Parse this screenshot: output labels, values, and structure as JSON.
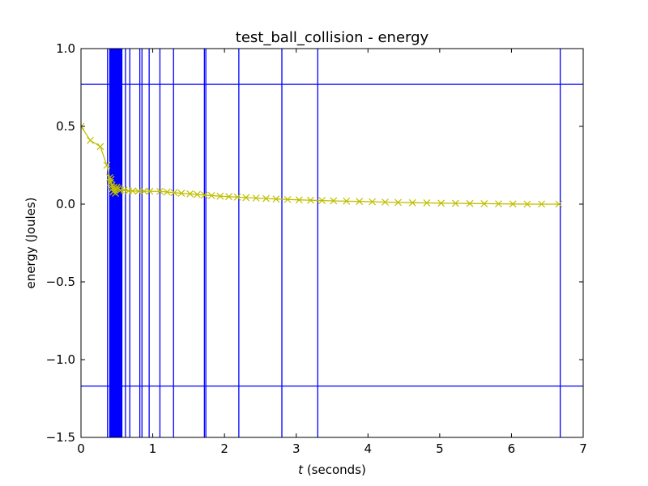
{
  "chart_data": {
    "type": "line",
    "title": "test_ball_collision - energy",
    "xlabel_var": "t",
    "xlabel_rest": " (seconds)",
    "ylabel": "energy (Joules)",
    "xlim": [
      0,
      7
    ],
    "ylim": [
      -1.5,
      1.0
    ],
    "xticks": [
      0,
      1,
      2,
      3,
      4,
      5,
      6,
      7
    ],
    "xtick_labels": [
      "0",
      "1",
      "2",
      "3",
      "4",
      "5",
      "6",
      "7"
    ],
    "yticks": [
      -1.5,
      -1.0,
      -0.5,
      0.0,
      0.5,
      1.0
    ],
    "ytick_labels": [
      "−1.5",
      "−1.0",
      "−0.5",
      "0.0",
      "0.5",
      "1.0"
    ],
    "grid": false,
    "series": [
      {
        "color": "#bfbf00",
        "marker": "x",
        "x": [
          0.0,
          0.13,
          0.27,
          0.36,
          0.4,
          0.41,
          0.42,
          0.43,
          0.44,
          0.45,
          0.46,
          0.47,
          0.48,
          0.49,
          0.5,
          0.52,
          0.55,
          0.6,
          0.66,
          0.72,
          0.8,
          0.88,
          0.96,
          1.1,
          1.2,
          1.3,
          1.4,
          1.52,
          1.62,
          1.72,
          1.82,
          1.94,
          2.06,
          2.18,
          2.3,
          2.44,
          2.58,
          2.72,
          2.88,
          3.04,
          3.2,
          3.36,
          3.52,
          3.7,
          3.88,
          4.06,
          4.24,
          4.42,
          4.62,
          4.82,
          5.02,
          5.22,
          5.42,
          5.62,
          5.82,
          6.02,
          6.22,
          6.42,
          6.66
        ],
        "y": [
          0.5,
          0.41,
          0.37,
          0.25,
          0.17,
          0.14,
          0.16,
          0.12,
          0.1,
          0.08,
          0.11,
          0.09,
          0.07,
          0.1,
          0.11,
          0.1,
          0.09,
          0.09,
          0.085,
          0.085,
          0.083,
          0.083,
          0.083,
          0.082,
          0.078,
          0.074,
          0.07,
          0.066,
          0.062,
          0.058,
          0.055,
          0.051,
          0.048,
          0.045,
          0.042,
          0.039,
          0.036,
          0.033,
          0.03,
          0.027,
          0.025,
          0.023,
          0.021,
          0.019,
          0.017,
          0.015,
          0.013,
          0.011,
          0.009,
          0.008,
          0.006,
          0.005,
          0.004,
          0.003,
          0.002,
          0.001,
          0.0,
          0.0,
          0.0
        ]
      }
    ],
    "vlines": {
      "color": "#0000ff",
      "x": [
        0.37,
        0.4,
        0.41,
        0.42,
        0.43,
        0.44,
        0.45,
        0.46,
        0.47,
        0.48,
        0.49,
        0.5,
        0.51,
        0.52,
        0.53,
        0.54,
        0.55,
        0.56,
        0.57,
        0.62,
        0.68,
        0.82,
        0.85,
        0.95,
        1.1,
        1.29,
        1.72,
        1.74,
        2.2,
        2.8,
        3.3,
        6.68
      ]
    },
    "hlines": {
      "color": "#0000ff",
      "y": [
        0.77,
        -1.17
      ]
    }
  }
}
